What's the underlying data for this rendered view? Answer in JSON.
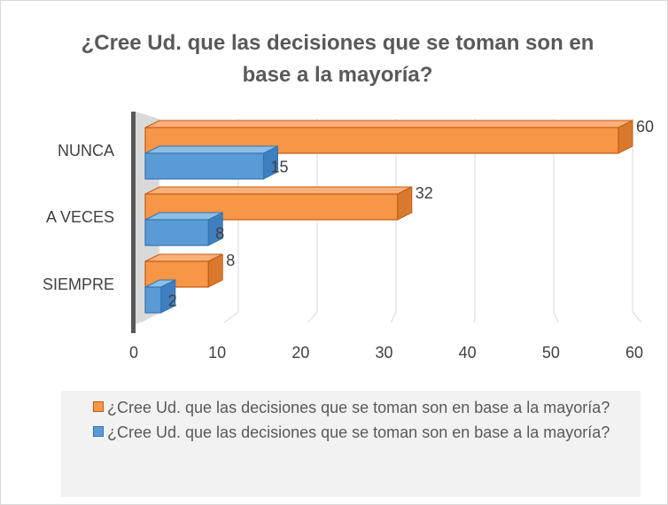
{
  "chart_data": {
    "type": "bar",
    "orientation": "horizontal",
    "3d": true,
    "title": "¿Cree Ud. que las decisiones que se toman son en base a la mayoría?",
    "categories": [
      "NUNCA",
      "A VECES",
      "SIEMPRE"
    ],
    "series": [
      {
        "name": "¿Cree Ud. que las decisiones que se toman son en base a la mayoría?",
        "color": "#f79646",
        "values": [
          60,
          32,
          8
        ]
      },
      {
        "name": "¿Cree Ud. que las decisiones que se toman son en base a la mayoría?",
        "color": "#5b9bd5",
        "values": [
          15,
          8,
          2
        ]
      }
    ],
    "xlim": [
      0,
      60
    ],
    "xticks": [
      0,
      10,
      20,
      30,
      40,
      50,
      60
    ],
    "grid": true,
    "legend": "bottom"
  }
}
